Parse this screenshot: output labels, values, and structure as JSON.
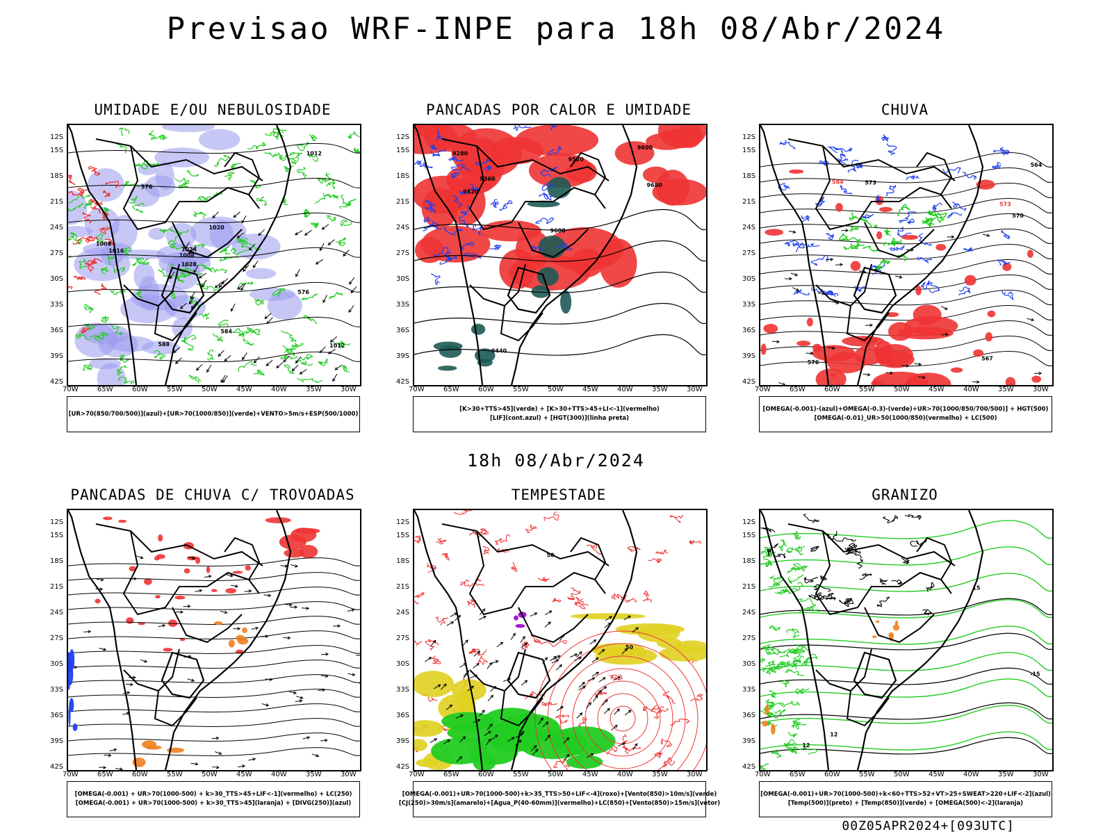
{
  "title": "Previsao WRF-INPE  para 18h 08/Abr/2024",
  "subtitle": "18h 08/Abr/2024",
  "footer": "00Z05APR2024+[093UTC]",
  "axes": {
    "lat": [
      "12S",
      "15S",
      "18S",
      "21S",
      "24S",
      "27S",
      "30S",
      "33S",
      "36S",
      "39S",
      "42S"
    ],
    "lon": [
      "70W",
      "65W",
      "60W",
      "55W",
      "50W",
      "45W",
      "40W",
      "35W",
      "30W"
    ]
  },
  "panels": [
    {
      "title": "UMIDADE E/OU NEBULOSIDADE",
      "legend": [
        "[UR>70(850/700/500)](azul)+[UR>70(1000/850)](verde)+VENTO>5m/s+ESP(500/1000)"
      ],
      "contour_labels": [
        "1008",
        "1008",
        "1012",
        "1016",
        "1020",
        "1024",
        "1028",
        "1012",
        "576",
        "584",
        "576",
        "588"
      ]
    },
    {
      "title": "PANCADAS POR CALOR E UMIDADE",
      "legend": [
        "[K>30+TTS>45](verde) + [K>30+TTS>45+LI<-1](vermelho)",
        "[LIF](cont.azul) + [HGT(300)](linha preta)"
      ],
      "contour_labels": [
        "9680",
        "9600",
        "9600",
        "9520",
        "9520",
        "9440",
        "9360",
        "9280"
      ]
    },
    {
      "title": "CHUVA",
      "legend": [
        "[OMEGA(-0.001)-(azul)+OMEGA(-0.3)-(verde)+UR>70(1000/850/700/500)] + HGT(500)",
        "[OMEGA(-0.01)_UR>50(1000/850)(vermelho) + LC(500)"
      ],
      "contour_labels": [
        "584",
        "576",
        "573",
        "570",
        "567",
        "564",
        "576",
        "573"
      ]
    },
    {
      "title": "PANCADAS DE CHUVA C/ TROVOADAS",
      "legend": [
        "[OMEGA(-0.001) + UR>70(1000-500) + k>30_TTS>45+LIF<-1](vermelho) + LC(250)",
        "[OMEGA(-0.001) + UR>70(1000-500) + k>30_TTS>45](laranja) + [DIVG(250)](azul)"
      ],
      "contour_labels": []
    },
    {
      "title": "TEMPESTADE",
      "legend": [
        "[OMEGA(-0.001)+UR>70(1000-500)+k>35_TTS>50+LIF<-4](roxo)+[Vento(850)>10m/s](verde)",
        "[CJ(250)>30m/s](amarelo)+[Agua_P(40-60mm)](vermelho)+LC(850)+[Vento(850)>15m/s](vetor)"
      ],
      "contour_labels": [
        "50",
        "50"
      ]
    },
    {
      "title": "GRANIZO",
      "legend": [
        "[OMEGA(-0.001)+UR>70(1000-500)+k<60+TTS>52+VT>25+SWEAT>220+LIF<-2](azul)",
        "[Temp(500)](preto) + [Temp(850)](verde) + [OMEGA(500)<-2](laranja)"
      ],
      "contour_labels": [
        "12",
        "12",
        "15",
        "-15"
      ]
    }
  ],
  "colors": {
    "blue_fill": "#9999ee",
    "green": "#22cc22",
    "red": "#ee3333",
    "dark_teal": "#1e5a55",
    "yellow": "#e0d020",
    "orange": "#f08020",
    "blue": "#2040ee",
    "purple": "#9900cc"
  }
}
